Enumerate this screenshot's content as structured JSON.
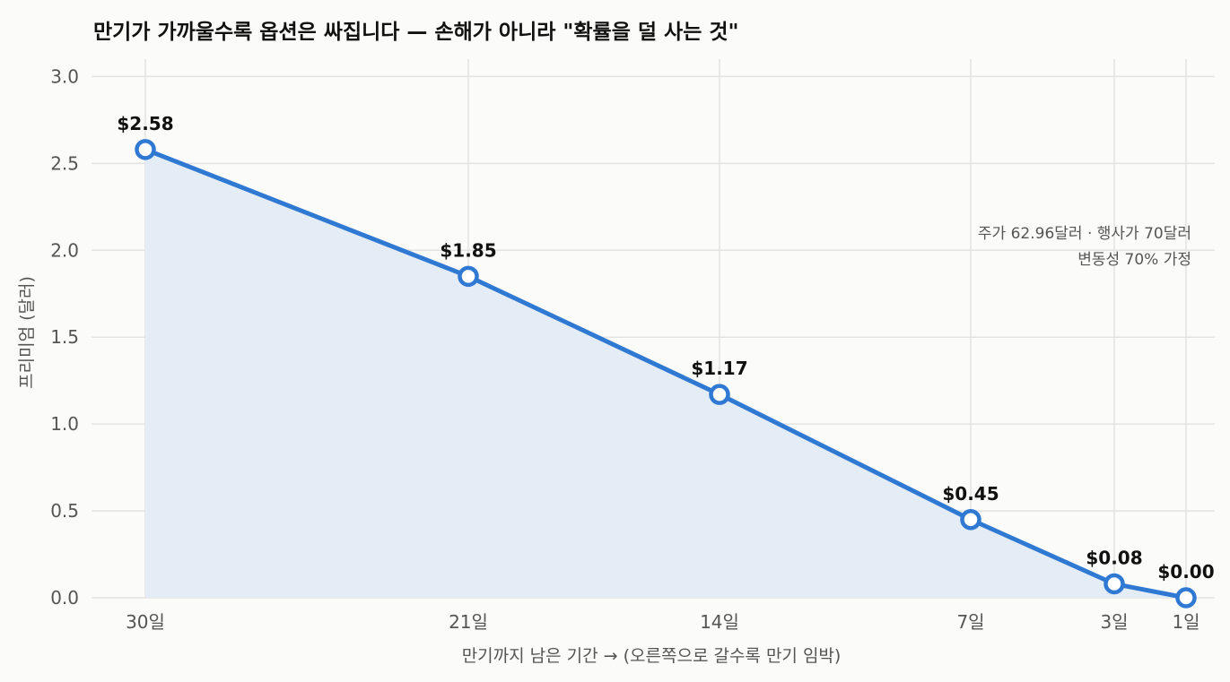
{
  "chart_data": {
    "type": "line",
    "title": "만기가 가까울수록 옵션은 싸집니다 — 손해가 아니라 \"확률을 덜 사는 것\"",
    "xlabel": "만기까지 남은 기간  →  (오른쪽으로 갈수록 만기 임박)",
    "ylabel": "프리미엄 (달러)",
    "x": [
      30,
      21,
      14,
      7,
      3,
      1
    ],
    "x_tick_labels": [
      "30일",
      "21일",
      "14일",
      "7일",
      "3일",
      "1일"
    ],
    "xlim": [
      31.5,
      0.2
    ],
    "ylim": [
      0,
      3.1
    ],
    "y_ticks": [
      0.0,
      0.5,
      1.0,
      1.5,
      2.0,
      2.5,
      3.0
    ],
    "y_tick_labels": [
      "0.0",
      "0.5",
      "1.0",
      "1.5",
      "2.0",
      "2.5",
      "3.0"
    ],
    "series": [
      {
        "values": [
          2.58,
          1.85,
          1.17,
          0.45,
          0.08,
          0.0
        ],
        "labels": [
          "$2.58",
          "$1.85",
          "$1.17",
          "$0.45",
          "$0.08",
          "$0.00"
        ]
      }
    ],
    "annotation_lines": [
      "주가 62.96달러 · 행사가 70달러",
      "변동성 70% 가정"
    ],
    "grid": true,
    "fill_under": true,
    "colors": {
      "line": "#2f79d3",
      "fill": "#e3ebf6",
      "marker_fill": "#ffffff"
    }
  }
}
